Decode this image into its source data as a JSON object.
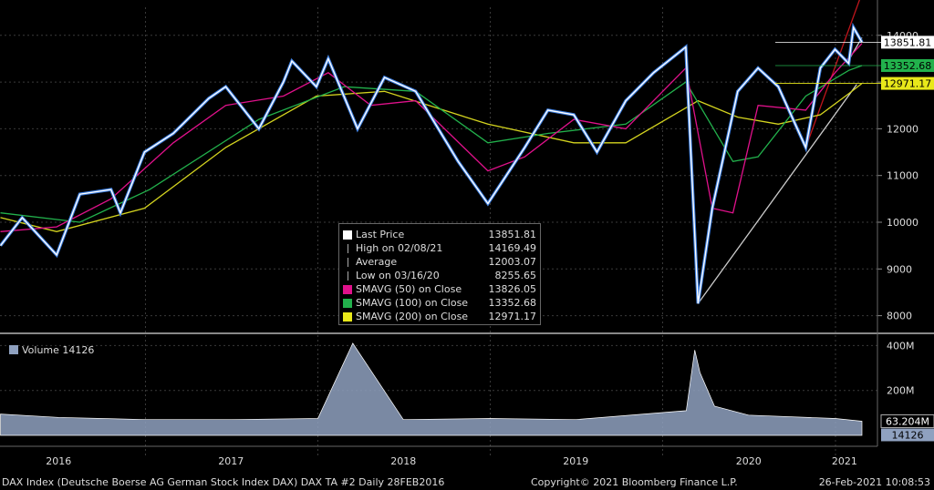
{
  "chart_data": [
    {
      "type": "line",
      "title": "",
      "y_axis": {
        "ticks": [
          8000,
          9000,
          10000,
          11000,
          12000,
          13000,
          14000
        ],
        "ylim": [
          7700,
          14600
        ]
      },
      "x_axis": {
        "labels": [
          "2016",
          "2017",
          "2018",
          "2019",
          "2020",
          "2021"
        ],
        "range": [
          "2016-02-28",
          "2021-02-26"
        ]
      },
      "series": [
        {
          "name": "Last Price",
          "color": "#ffffff",
          "x": [
            "2016-02-29",
            "2016-04-15",
            "2016-06-27",
            "2016-08-15",
            "2016-10-20",
            "2016-11-09",
            "2016-12-30",
            "2017-03-01",
            "2017-05-15",
            "2017-06-20",
            "2017-08-29",
            "2017-10-20",
            "2017-11-07",
            "2017-12-29",
            "2018-01-23",
            "2018-03-26",
            "2018-05-22",
            "2018-07-27",
            "2018-10-25",
            "2018-12-27",
            "2019-03-15",
            "2019-05-03",
            "2019-06-27",
            "2019-08-15",
            "2019-10-15",
            "2019-12-13",
            "2020-02-19",
            "2020-03-16",
            "2020-04-15",
            "2020-06-08",
            "2020-07-21",
            "2020-09-02",
            "2020-10-30",
            "2020-11-30",
            "2020-12-31",
            "2021-01-29",
            "2021-02-08",
            "2021-02-26"
          ],
          "y": [
            9500,
            10100,
            9300,
            10600,
            10700,
            10200,
            11500,
            11900,
            12650,
            12900,
            12000,
            13000,
            13450,
            12900,
            13500,
            12000,
            13100,
            12800,
            11300,
            10400,
            11600,
            12400,
            12300,
            11500,
            12600,
            13200,
            13750,
            8260,
            10300,
            12800,
            13300,
            12900,
            11600,
            13300,
            13700,
            13400,
            14169,
            13852
          ]
        },
        {
          "name": "SMAVG (50) on Close",
          "color": "#e0118b",
          "x": [
            "2016-02-29",
            "2016-06-27",
            "2016-10-20",
            "2017-03-01",
            "2017-06-20",
            "2017-10-20",
            "2018-01-23",
            "2018-04-23",
            "2018-07-27",
            "2018-12-27",
            "2019-03-15",
            "2019-06-27",
            "2019-10-15",
            "2020-02-19",
            "2020-04-15",
            "2020-05-29",
            "2020-07-21",
            "2020-10-30",
            "2020-12-31",
            "2021-02-26"
          ],
          "y": [
            9800,
            9900,
            10500,
            11700,
            12500,
            12700,
            13200,
            12500,
            12600,
            11100,
            11400,
            12200,
            12000,
            13300,
            10300,
            10200,
            12500,
            12400,
            13200,
            13826
          ]
        },
        {
          "name": "SMAVG (100) on Close",
          "color": "#22b14c",
          "x": [
            "2016-02-29",
            "2016-08-15",
            "2017-01-10",
            "2017-08-29",
            "2018-02-26",
            "2018-07-27",
            "2018-12-27",
            "2019-05-03",
            "2019-10-15",
            "2020-02-19",
            "2020-05-29",
            "2020-07-21",
            "2020-10-30",
            "2021-01-29",
            "2021-02-26"
          ],
          "y": [
            10200,
            10000,
            10700,
            12200,
            12900,
            12800,
            11700,
            11900,
            12100,
            13000,
            11300,
            11400,
            12700,
            13250,
            13353
          ]
        },
        {
          "name": "SMAVG (200) on Close",
          "color": "#d4d41f",
          "x": [
            "2016-02-29",
            "2016-06-27",
            "2016-12-30",
            "2017-06-20",
            "2017-12-29",
            "2018-05-22",
            "2018-12-27",
            "2019-06-27",
            "2019-10-15",
            "2020-03-16",
            "2020-06-08",
            "2020-09-02",
            "2020-11-30",
            "2021-01-29",
            "2021-02-26"
          ],
          "y": [
            10100,
            9800,
            10300,
            11600,
            12700,
            12800,
            12100,
            11700,
            11700,
            12600,
            12250,
            12100,
            12300,
            12750,
            12971
          ]
        }
      ],
      "trendlines": [
        {
          "color": "#cccccc",
          "x": [
            "2020-03-16",
            "2021-02-15"
          ],
          "y": [
            8260,
            12950
          ]
        },
        {
          "color": "#c0151c",
          "x": [
            "2020-10-30",
            "2021-02-26"
          ],
          "y": [
            11600,
            14900
          ]
        },
        {
          "color": "#cccccc",
          "x": [
            "2021-01-25",
            "2021-02-26"
          ],
          "y": [
            13400,
            13950
          ]
        }
      ],
      "price_tags": [
        {
          "value": "13851.81",
          "bg": "#ffffff",
          "fg": "#000000",
          "level": 13852
        },
        {
          "value": "13352.68",
          "bg": "#22b14c",
          "fg": "#000000",
          "level": 13353
        },
        {
          "value": "12971.17",
          "bg": "#e8e81a",
          "fg": "#000000",
          "level": 12971
        }
      ]
    },
    {
      "type": "area",
      "title": "",
      "series": [
        {
          "name": "Volume",
          "color": "#8fa1c0"
        }
      ],
      "y_axis": {
        "labels": [
          "400M",
          "200M"
        ],
        "ticks": [
          400,
          200
        ],
        "ylim": [
          0,
          430
        ]
      },
      "x": [
        "2016-02-29",
        "2016-07-01",
        "2017-01-01",
        "2017-07-01",
        "2018-01-01",
        "2018-03-16",
        "2018-07-01",
        "2019-01-01",
        "2019-07-01",
        "2020-02-20",
        "2020-03-09",
        "2020-03-20",
        "2020-04-20",
        "2020-07-01",
        "2021-01-01",
        "2021-02-26"
      ],
      "values": [
        95,
        80,
        70,
        70,
        75,
        410,
        70,
        75,
        70,
        110,
        380,
        280,
        130,
        90,
        75,
        63
      ],
      "value_tag": "63.204M",
      "last_tag": "14126"
    }
  ],
  "legend": {
    "items": [
      {
        "label": "Last Price",
        "value": "13851.81",
        "swatch": "#ffffff",
        "marker": "square"
      },
      {
        "label": "High on 02/08/21",
        "value": "14169.49",
        "swatch": "",
        "marker": "high"
      },
      {
        "label": "Average",
        "value": "12003.07",
        "swatch": "",
        "marker": "avg"
      },
      {
        "label": "Low on 03/16/20",
        "value": "8255.65",
        "swatch": "",
        "marker": "low"
      },
      {
        "label": "SMAVG (50)  on Close",
        "value": "13826.05",
        "swatch": "#e0118b",
        "marker": "square"
      },
      {
        "label": "SMAVG (100)  on Close",
        "value": "13352.68",
        "swatch": "#22b14c",
        "marker": "square"
      },
      {
        "label": "SMAVG (200)  on Close",
        "value": "12971.17",
        "swatch": "#e8e81a",
        "marker": "square"
      }
    ]
  },
  "volume_label": "Volume  14126",
  "footer": {
    "left": "DAX Index (Deutsche Boerse AG German Stock Index DAX) DAX TA #2  Daily 28FEB2016",
    "center": "Copyright© 2021 Bloomberg Finance L.P.",
    "right": "26-Feb-2021 10:08:53"
  }
}
